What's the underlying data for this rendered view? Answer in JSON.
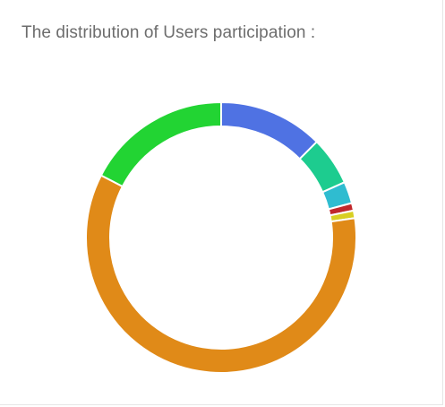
{
  "card": {
    "title": "The distribution of Users participation :"
  },
  "chart_data": {
    "type": "pie",
    "variant": "doughnut",
    "title": "",
    "legend": "none",
    "series": [
      {
        "value": 12.5,
        "color": "#4f72e3"
      },
      {
        "value": 5.8,
        "color": "#1dcc8f"
      },
      {
        "value": 2.6,
        "color": "#2fbcd0"
      },
      {
        "value": 0.9,
        "color": "#c0282b"
      },
      {
        "value": 0.9,
        "color": "#d8cf22"
      },
      {
        "value": 59.9,
        "color": "#e08a18"
      },
      {
        "value": 17.4,
        "color": "#22d433"
      }
    ]
  }
}
